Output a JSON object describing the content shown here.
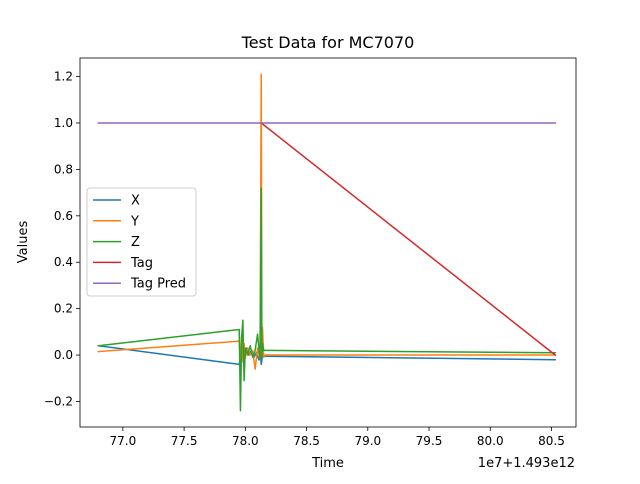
{
  "chart_data": {
    "type": "line",
    "title": "Test Data for MC7070",
    "xlabel": "Time",
    "ylabel": "Values",
    "x_offset_text": "1e7+1.493e12",
    "xlim": [
      76.65,
      80.7
    ],
    "ylim": [
      -0.31,
      1.28
    ],
    "xticks": [
      {
        "value": 77.0,
        "label": "77.0"
      },
      {
        "value": 77.5,
        "label": "77.5"
      },
      {
        "value": 78.0,
        "label": "78.0"
      },
      {
        "value": 78.5,
        "label": "78.5"
      },
      {
        "value": 79.0,
        "label": "79.0"
      },
      {
        "value": 79.5,
        "label": "79.5"
      },
      {
        "value": 80.0,
        "label": "80.0"
      },
      {
        "value": 80.5,
        "label": "80.5"
      }
    ],
    "yticks": [
      {
        "value": -0.2,
        "label": "−0.2"
      },
      {
        "value": 0.0,
        "label": "0.0"
      },
      {
        "value": 0.2,
        "label": "0.2"
      },
      {
        "value": 0.4,
        "label": "0.4"
      },
      {
        "value": 0.6,
        "label": "0.6"
      },
      {
        "value": 0.8,
        "label": "0.8"
      },
      {
        "value": 1.0,
        "label": "1.0"
      },
      {
        "value": 1.2,
        "label": "1.2"
      }
    ],
    "legend_position": "center-left",
    "series": [
      {
        "name": "X",
        "color": "#1f77b4",
        "x": [
          76.8,
          77.95,
          77.97,
          77.99,
          78.01,
          78.03,
          78.05,
          78.07,
          78.09,
          78.11,
          78.12,
          78.13,
          78.14,
          78.16,
          80.53
        ],
        "y": [
          0.04,
          -0.04,
          0.02,
          -0.03,
          0.03,
          0.0,
          0.02,
          -0.01,
          0.01,
          -0.02,
          0.01,
          -0.04,
          0.0,
          -0.005,
          -0.02
        ]
      },
      {
        "name": "Y",
        "color": "#ff7f0e",
        "x": [
          76.8,
          77.95,
          77.96,
          77.97,
          77.98,
          77.99,
          78.0,
          78.02,
          78.04,
          78.06,
          78.08,
          78.1,
          78.12,
          78.13,
          78.135,
          78.14,
          78.15,
          78.16,
          80.53
        ],
        "y": [
          0.015,
          0.06,
          -0.02,
          0.09,
          -0.03,
          0.05,
          -0.01,
          0.03,
          0.0,
          0.02,
          -0.06,
          0.03,
          -0.02,
          1.21,
          0.0,
          0.12,
          -0.01,
          0.0,
          0.0
        ]
      },
      {
        "name": "Z",
        "color": "#2ca02c",
        "x": [
          76.8,
          77.95,
          77.96,
          77.97,
          77.98,
          77.99,
          78.0,
          78.02,
          78.04,
          78.06,
          78.08,
          78.1,
          78.12,
          78.13,
          78.135,
          78.14,
          78.15,
          78.16,
          80.53
        ],
        "y": [
          0.04,
          0.11,
          -0.24,
          0.08,
          0.15,
          -0.11,
          0.03,
          0.0,
          0.04,
          -0.01,
          0.02,
          0.09,
          -0.02,
          0.72,
          -0.01,
          0.05,
          0.02,
          0.02,
          0.01
        ]
      },
      {
        "name": "Tag",
        "color": "#d62728",
        "x": [
          78.13,
          80.53
        ],
        "y": [
          1.0,
          0.0
        ]
      },
      {
        "name": "Tag Pred",
        "color": "#9467bd",
        "x": [
          76.8,
          80.53
        ],
        "y": [
          1.0,
          1.0
        ]
      }
    ]
  }
}
